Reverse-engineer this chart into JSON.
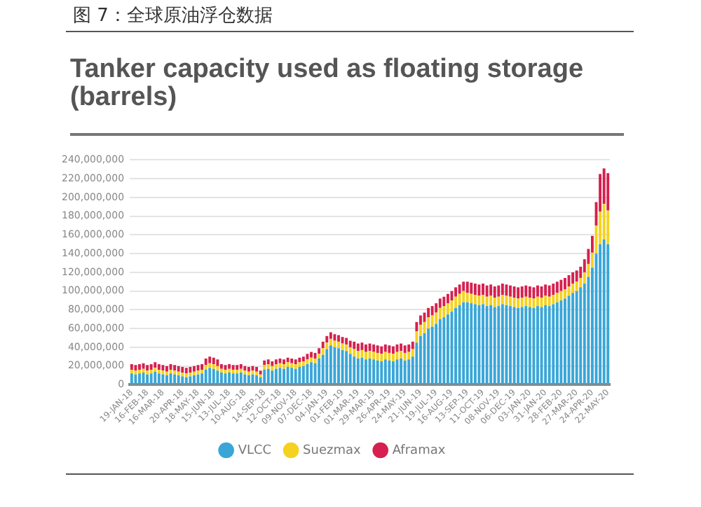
{
  "chart_data": {
    "type": "bar",
    "stacked": true,
    "title": "图 7：全球原油浮仓数据",
    "subtitle": "Tanker capacity used as floating storage (barrels)",
    "categories": [
      "19-JAN-18",
      null,
      null,
      null,
      "16-FEB-18",
      null,
      null,
      null,
      "16-MAR-18",
      null,
      null,
      null,
      null,
      "20-APR-18",
      null,
      null,
      null,
      "18-MAY-18",
      null,
      null,
      null,
      "15-JUN-18",
      null,
      null,
      null,
      "13-JUL-18",
      null,
      null,
      null,
      "10-AUG-18",
      null,
      null,
      null,
      null,
      "14-SEP-18",
      null,
      null,
      null,
      "12-OCT-18",
      null,
      null,
      null,
      "09-NOV-18",
      null,
      null,
      null,
      "07-DEC-18",
      null,
      null,
      null,
      "04-JAN-19",
      null,
      null,
      null,
      "01-FEB-19",
      null,
      null,
      null,
      "01-MAR-19",
      null,
      null,
      null,
      "29-MAR-19",
      null,
      null,
      null,
      "26-APR-19",
      null,
      null,
      null,
      "24-MAY-19",
      null,
      null,
      null,
      "21-JUN-19",
      null,
      null,
      null,
      "19-JUL-19",
      null,
      null,
      null,
      "16-AUG-19",
      null,
      null,
      null,
      "13-SEP-19",
      null,
      null,
      null,
      "11-OCT-19",
      null,
      null,
      null,
      "08-NOV-19",
      null,
      null,
      null,
      "06-DEC-19",
      null,
      null,
      null,
      "03-JAN-20",
      null,
      null,
      null,
      "31-JAN-20",
      null,
      null,
      null,
      "28-FEB-20",
      null,
      null,
      null,
      "27-MAR-20",
      null,
      null,
      null,
      "24-APR-20",
      null,
      null,
      null,
      "22-MAY-20"
    ],
    "series": [
      {
        "name": "VLCC",
        "color": "#3aa6d8",
        "values": [
          12000000,
          11000000,
          12000000,
          13000000,
          11000000,
          12000000,
          14000000,
          12000000,
          11000000,
          10000000,
          12000000,
          11000000,
          10000000,
          9000000,
          8000000,
          9000000,
          10000000,
          11000000,
          12000000,
          16000000,
          18000000,
          17000000,
          15000000,
          13000000,
          12000000,
          13000000,
          12000000,
          12000000,
          13000000,
          11000000,
          10000000,
          11000000,
          10000000,
          8000000,
          16000000,
          17000000,
          15000000,
          17000000,
          18000000,
          17000000,
          19000000,
          18000000,
          17000000,
          19000000,
          20000000,
          22000000,
          24000000,
          23000000,
          28000000,
          32000000,
          38000000,
          42000000,
          40000000,
          39000000,
          37000000,
          36000000,
          33000000,
          30000000,
          28000000,
          29000000,
          27000000,
          28000000,
          27000000,
          26000000,
          25000000,
          27000000,
          26000000,
          25000000,
          27000000,
          28000000,
          26000000,
          27000000,
          30000000,
          45000000,
          52000000,
          55000000,
          60000000,
          62000000,
          65000000,
          70000000,
          72000000,
          75000000,
          78000000,
          82000000,
          85000000,
          88000000,
          88000000,
          87000000,
          86000000,
          85000000,
          86000000,
          84000000,
          85000000,
          83000000,
          84000000,
          86000000,
          85000000,
          84000000,
          83000000,
          82000000,
          83000000,
          84000000,
          83000000,
          82000000,
          84000000,
          83000000,
          85000000,
          84000000,
          86000000,
          88000000,
          90000000,
          92000000,
          95000000,
          98000000,
          100000000,
          104000000,
          108000000,
          115000000,
          125000000,
          140000000,
          150000000,
          155000000,
          150000000
        ]
      },
      {
        "name": "Suezmax",
        "color": "#f5d21f",
        "values": [
          4000000,
          4000000,
          4000000,
          4000000,
          4000000,
          4000000,
          4000000,
          4000000,
          4000000,
          4000000,
          4000000,
          4000000,
          4000000,
          4000000,
          4000000,
          4000000,
          4000000,
          4000000,
          4000000,
          5000000,
          5000000,
          5000000,
          5000000,
          4000000,
          4000000,
          4000000,
          4000000,
          4000000,
          4000000,
          4000000,
          4000000,
          4000000,
          4000000,
          3000000,
          5000000,
          5000000,
          5000000,
          5000000,
          5000000,
          5000000,
          5000000,
          5000000,
          5000000,
          5000000,
          5000000,
          5000000,
          5000000,
          5000000,
          5000000,
          7000000,
          7000000,
          7000000,
          7000000,
          7000000,
          7000000,
          7000000,
          7000000,
          8000000,
          8000000,
          8000000,
          8000000,
          8000000,
          8000000,
          8000000,
          8000000,
          8000000,
          8000000,
          8000000,
          8000000,
          8000000,
          8000000,
          8000000,
          8000000,
          12000000,
          12000000,
          12000000,
          12000000,
          12000000,
          12000000,
          12000000,
          12000000,
          12000000,
          12000000,
          12000000,
          12000000,
          12000000,
          10000000,
          10000000,
          10000000,
          10000000,
          10000000,
          10000000,
          10000000,
          10000000,
          10000000,
          10000000,
          10000000,
          10000000,
          10000000,
          10000000,
          10000000,
          10000000,
          10000000,
          10000000,
          10000000,
          10000000,
          10000000,
          10000000,
          10000000,
          10000000,
          10000000,
          10000000,
          10000000,
          10000000,
          10000000,
          10000000,
          12000000,
          14000000,
          16000000,
          30000000,
          35000000,
          38000000,
          36000000
        ]
      },
      {
        "name": "Aframax",
        "color": "#d6204f",
        "values": [
          6000000,
          6000000,
          6000000,
          6000000,
          6000000,
          6000000,
          6000000,
          6000000,
          6000000,
          6000000,
          6000000,
          6000000,
          6000000,
          6000000,
          6000000,
          6000000,
          6000000,
          6000000,
          6000000,
          7000000,
          7000000,
          7000000,
          7000000,
          5000000,
          5000000,
          5000000,
          5000000,
          5000000,
          5000000,
          5000000,
          5000000,
          5000000,
          5000000,
          4000000,
          5000000,
          5000000,
          5000000,
          5000000,
          5000000,
          5000000,
          5000000,
          5000000,
          5000000,
          5000000,
          5000000,
          6000000,
          6000000,
          6000000,
          6000000,
          7000000,
          7000000,
          7000000,
          7000000,
          7000000,
          7000000,
          7000000,
          7000000,
          8000000,
          8000000,
          8000000,
          8000000,
          8000000,
          8000000,
          8000000,
          8000000,
          8000000,
          8000000,
          8000000,
          8000000,
          8000000,
          8000000,
          8000000,
          8000000,
          10000000,
          10000000,
          10000000,
          10000000,
          10000000,
          10000000,
          10000000,
          10000000,
          10000000,
          10000000,
          10000000,
          10000000,
          10000000,
          12000000,
          12000000,
          12000000,
          12000000,
          12000000,
          12000000,
          12000000,
          12000000,
          12000000,
          12000000,
          12000000,
          12000000,
          12000000,
          12000000,
          12000000,
          12000000,
          12000000,
          12000000,
          12000000,
          12000000,
          12000000,
          12000000,
          12000000,
          12000000,
          12000000,
          12000000,
          12000000,
          12000000,
          12000000,
          12000000,
          14000000,
          16000000,
          18000000,
          25000000,
          40000000,
          38000000,
          40000000
        ]
      }
    ],
    "ylim": [
      0,
      240000000
    ],
    "yticks": [
      0,
      {
        "value": 20000000,
        "label": "20,000,000"
      },
      {
        "value": 40000000,
        "label": "40,000,000"
      },
      {
        "value": 60000000,
        "label": "60,000,000"
      },
      {
        "value": 80000000,
        "label": "80,000,000"
      },
      {
        "value": 100000000,
        "label": "100,000,000"
      },
      {
        "value": 120000000,
        "label": "120,000,000"
      },
      {
        "value": 140000000,
        "label": "140,000,000"
      },
      {
        "value": 160000000,
        "label": "160,000,000"
      },
      {
        "value": 180000000,
        "label": "180,000,000"
      },
      {
        "value": 200000000,
        "label": "200,000,000"
      },
      {
        "value": 220000000,
        "label": "220,000,000"
      },
      {
        "value": 240000000,
        "label": "240,000,000"
      }
    ],
    "grid": "y",
    "legend": "bottom"
  }
}
